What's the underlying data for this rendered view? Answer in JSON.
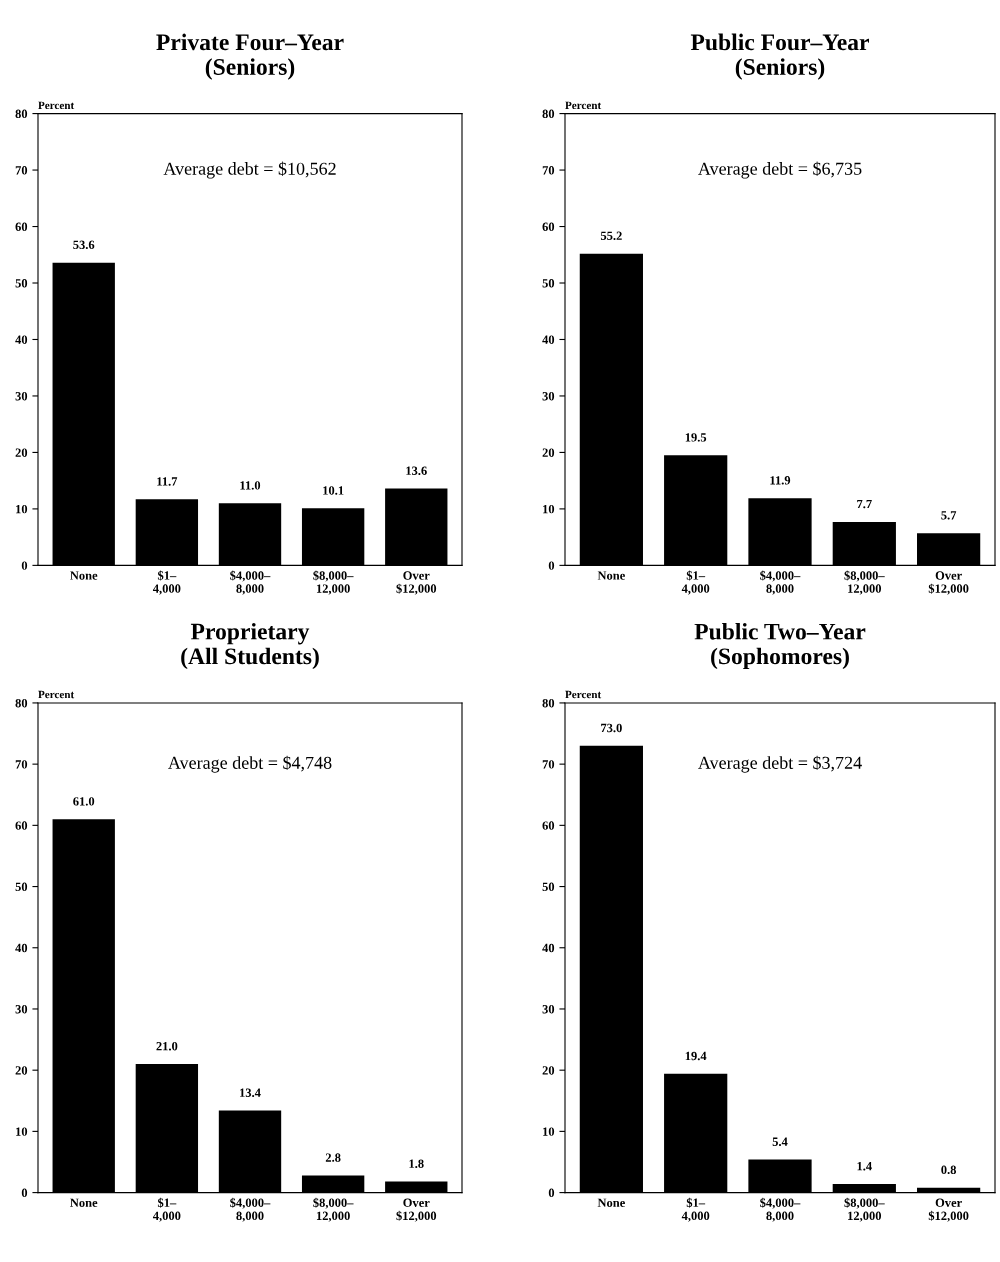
{
  "chart_data": [
    {
      "type": "bar",
      "title": "Private Four–Year\n(Seniors)",
      "ylabel": "Percent",
      "categories": [
        "None",
        "$1–\n4,000",
        "$4,000–\n8,000",
        "$8,000–\n12,000",
        "Over\n$12,000"
      ],
      "values": [
        53.6,
        11.7,
        11.0,
        10.1,
        13.6
      ],
      "value_labels": [
        "53.6",
        "11.7",
        "11.0",
        "10.1",
        "13.6"
      ],
      "color": "#000000",
      "ylim": [
        0,
        80
      ],
      "yticks": [
        0,
        10,
        20,
        30,
        40,
        50,
        60,
        70,
        80
      ],
      "grid": false,
      "legend": false,
      "annotations": [
        "Average debt = $10,562"
      ]
    },
    {
      "type": "bar",
      "title": "Public Four–Year\n(Seniors)",
      "ylabel": "Percent",
      "categories": [
        "None",
        "$1–\n4,000",
        "$4,000–\n8,000",
        "$8,000–\n12,000",
        "Over\n$12,000"
      ],
      "values": [
        55.2,
        19.5,
        11.9,
        7.7,
        5.7
      ],
      "value_labels": [
        "55.2",
        "19.5",
        "11.9",
        "7.7",
        "5.7"
      ],
      "color": "#000000",
      "ylim": [
        0,
        80
      ],
      "yticks": [
        0,
        10,
        20,
        30,
        40,
        50,
        60,
        70,
        80
      ],
      "grid": false,
      "legend": false,
      "annotations": [
        "Average debt = $6,735"
      ]
    },
    {
      "type": "bar",
      "title": "Proprietary\n(All Students)",
      "ylabel": "Percent",
      "categories": [
        "None",
        "$1–\n4,000",
        "$4,000–\n8,000",
        "$8,000–\n12,000",
        "Over\n$12,000"
      ],
      "values": [
        61.0,
        21.0,
        13.4,
        2.8,
        1.8
      ],
      "value_labels": [
        "61.0",
        "21.0",
        "13.4",
        "2.8",
        "1.8"
      ],
      "color": "#000000",
      "ylim": [
        0,
        80
      ],
      "yticks": [
        0,
        10,
        20,
        30,
        40,
        50,
        60,
        70,
        80
      ],
      "grid": false,
      "legend": false,
      "annotations": [
        "Average debt = $4,748"
      ]
    },
    {
      "type": "bar",
      "title": "Public Two–Year\n(Sophomores)",
      "ylabel": "Percent",
      "categories": [
        "None",
        "$1–\n4,000",
        "$4,000–\n8,000",
        "$8,000–\n12,000",
        "Over\n$12,000"
      ],
      "values": [
        73.0,
        19.4,
        5.4,
        1.4,
        0.8
      ],
      "value_labels": [
        "73.0",
        "19.4",
        "5.4",
        "1.4",
        "0.8"
      ],
      "color": "#000000",
      "ylim": [
        0,
        80
      ],
      "yticks": [
        0,
        10,
        20,
        30,
        40,
        50,
        60,
        70,
        80
      ],
      "grid": false,
      "legend": false,
      "annotations": [
        "Average debt = $3,724"
      ]
    }
  ]
}
